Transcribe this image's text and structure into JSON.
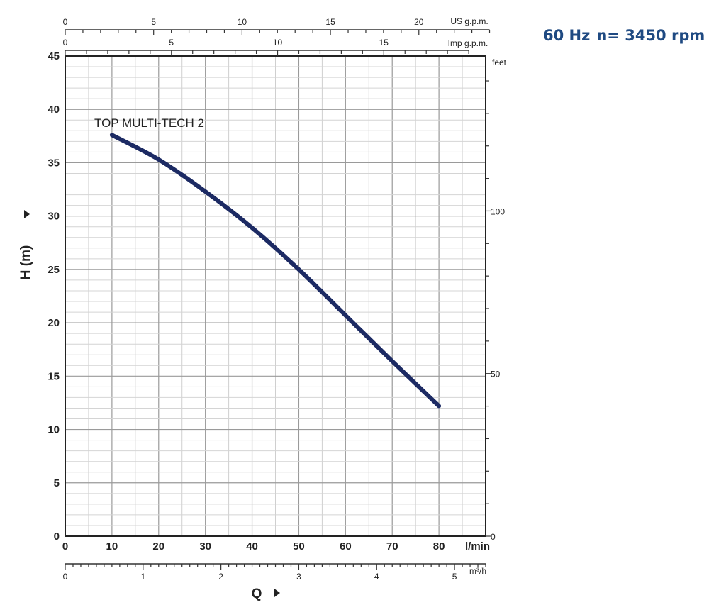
{
  "header": {
    "frequency": "60 Hz",
    "speed": "n= 3450 rpm"
  },
  "chart_data": {
    "type": "line",
    "title": "60 Hz n= 3450 rpm",
    "xlabel": "Q",
    "ylabel": "H (m)",
    "x_unit": "l/min",
    "xlim": [
      0,
      90
    ],
    "ylim": [
      0,
      45
    ],
    "x_ticks": [
      0,
      10,
      20,
      30,
      40,
      50,
      60,
      70,
      80
    ],
    "y_ticks": [
      0,
      5,
      10,
      15,
      20,
      25,
      30,
      35,
      40,
      45
    ],
    "grid": true,
    "series": [
      {
        "name": "TOP MULTI-TECH 2",
        "color": "#1c2a63",
        "x": [
          10,
          20,
          30,
          40,
          50,
          60,
          70,
          80
        ],
        "y": [
          37.6,
          35.3,
          32.3,
          28.9,
          25.0,
          20.7,
          16.4,
          12.2
        ]
      }
    ],
    "secondary_axes": {
      "top_us_gpm": {
        "unit": "US g.p.m.",
        "lpm_per_unit": 3.785,
        "ticks": [
          0,
          5,
          10,
          15,
          20
        ],
        "range": [
          0,
          24
        ]
      },
      "top_imp_gpm": {
        "unit": "Imp g.p.m.",
        "lpm_per_unit": 4.546,
        "ticks": [
          0,
          5,
          10,
          15
        ],
        "range": [
          0,
          19
        ]
      },
      "bottom_m3h": {
        "unit": "m³/h",
        "lpm_per_unit": 16.667,
        "ticks": [
          0,
          1,
          2,
          3,
          4,
          5
        ],
        "range": [
          0,
          5.4
        ]
      },
      "right_feet": {
        "unit": "feet",
        "m_per_unit": 0.3048,
        "ticks": [
          0,
          50,
          100
        ]
      }
    }
  }
}
